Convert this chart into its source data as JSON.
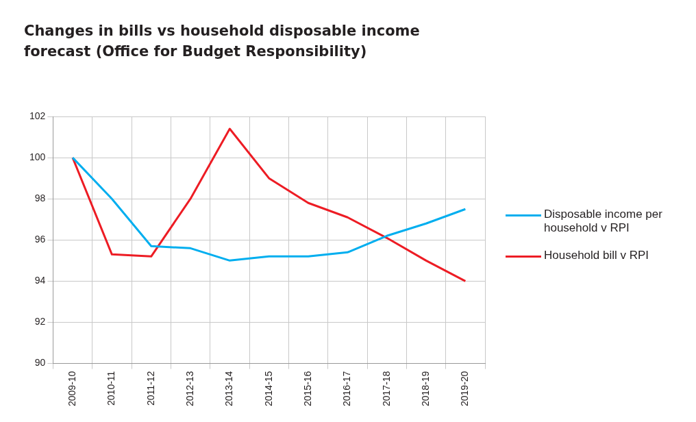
{
  "chart_data": {
    "type": "line",
    "title": "Changes in bills vs household disposable income forecast (Office for Budget Responsibility)",
    "categories": [
      "2009-10",
      "2010-11",
      "2011-12",
      "2012-13",
      "2013-14",
      "2014-15",
      "2015-16",
      "2016-17",
      "2017-18",
      "2018-19",
      "2019-20"
    ],
    "series": [
      {
        "name": "Disposable income per household v RPI",
        "color": "#00aeef",
        "values": [
          100,
          98.0,
          95.7,
          95.6,
          95.0,
          95.2,
          95.2,
          95.4,
          96.2,
          96.8,
          97.5
        ]
      },
      {
        "name": "Household bill v RPI",
        "color": "#ed1c24",
        "values": [
          100,
          95.3,
          95.2,
          98.0,
          101.4,
          99.0,
          97.8,
          97.1,
          96.1,
          95.0,
          94.0
        ]
      }
    ],
    "ylim": [
      90,
      102
    ],
    "yticks": [
      90,
      92,
      94,
      96,
      98,
      100,
      102
    ],
    "grid": true,
    "legend": "right",
    "marker": "none",
    "line_style": "solid"
  }
}
